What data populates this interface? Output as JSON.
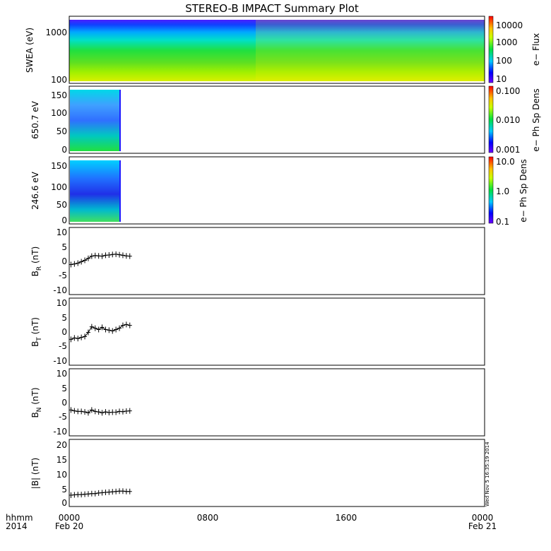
{
  "title": "STEREO-B IMPACT Summary Plot",
  "x_axis": {
    "ticks": [
      {
        "top": "0000",
        "bottom": "Feb 20"
      },
      {
        "top": "0800",
        "bottom": ""
      },
      {
        "top": "1600",
        "bottom": ""
      },
      {
        "top": "0000",
        "bottom": "Feb 21"
      }
    ],
    "corner_top": "hhmm",
    "corner_bottom": "2014",
    "range_hours": [
      0,
      24
    ]
  },
  "timestamp": "Wed Nov  5 16:35:19 2014",
  "panels": [
    {
      "id": "swea",
      "ylabel": "SWEA (eV)",
      "yticks": [
        "1000",
        "100"
      ],
      "colorbar": {
        "label": "e− Flux",
        "ticks": [
          "10000",
          "1000",
          "100",
          "10"
        ]
      }
    },
    {
      "id": "pad650",
      "ylabel": "650.7 eV",
      "yticks": [
        "150",
        "100",
        "50",
        "0"
      ],
      "colorbar": {
        "label": "e− Ph Sp Dens",
        "ticks": [
          "0.100",
          "0.010",
          "0.001"
        ]
      }
    },
    {
      "id": "pad246",
      "ylabel": "246.6 eV",
      "yticks": [
        "150",
        "100",
        "50",
        "0"
      ],
      "colorbar": {
        "label": "e− Ph Sp Dens",
        "ticks": [
          "10.0",
          "1.0",
          "0.1"
        ]
      }
    },
    {
      "id": "br",
      "ylabel": "B",
      "ysub": "R",
      "yunit": " (nT)",
      "yticks": [
        "10",
        "5",
        "0",
        "-5",
        "-10"
      ]
    },
    {
      "id": "bt",
      "ylabel": "B",
      "ysub": "T",
      "yunit": " (nT)",
      "yticks": [
        "10",
        "5",
        "0",
        "-5",
        "-10"
      ]
    },
    {
      "id": "bn",
      "ylabel": "B",
      "ysub": "N",
      "yunit": " (nT)",
      "yticks": [
        "10",
        "5",
        "0",
        "-5",
        "-10"
      ]
    },
    {
      "id": "bmag",
      "ylabel": "|B| (nT)",
      "yticks": [
        "20",
        "15",
        "10",
        "5",
        "0"
      ]
    }
  ],
  "chart_data": [
    {
      "type": "heatmap",
      "panel": "swea",
      "ylabel": "SWEA (eV)",
      "y_scale": "log",
      "ylim": [
        100,
        2000
      ],
      "colorbar_label": "e− Flux",
      "colorbar_scale": "log",
      "colorbar_range": [
        10,
        10000
      ],
      "x_hours": [
        0,
        24
      ]
    },
    {
      "type": "heatmap",
      "panel": "pad650",
      "ylabel": "650.7 eV",
      "ylim": [
        0,
        180
      ],
      "colorbar_label": "e− Ph Sp Dens",
      "colorbar_scale": "log",
      "colorbar_range": [
        0.001,
        0.1
      ],
      "data_x_hours": [
        0,
        3.5
      ]
    },
    {
      "type": "heatmap",
      "panel": "pad246",
      "ylabel": "246.6 eV",
      "ylim": [
        0,
        180
      ],
      "colorbar_label": "e− Ph Sp Dens",
      "colorbar_scale": "log",
      "colorbar_range": [
        0.1,
        10
      ],
      "data_x_hours": [
        0,
        3.5
      ]
    },
    {
      "type": "scatter",
      "panel": "br",
      "ylabel": "B_R (nT)",
      "ylim": [
        -11,
        11
      ],
      "x": [
        0.1,
        0.3,
        0.5,
        0.7,
        0.9,
        1.1,
        1.3,
        1.5,
        1.7,
        1.9,
        2.1,
        2.3,
        2.5,
        2.7,
        2.9,
        3.1,
        3.3,
        3.5
      ],
      "y": [
        -1.0,
        -0.8,
        -0.5,
        0.0,
        0.5,
        1.2,
        2.0,
        2.2,
        2.1,
        2.0,
        2.3,
        2.4,
        2.6,
        2.7,
        2.5,
        2.3,
        2.1,
        2.0
      ]
    },
    {
      "type": "scatter",
      "panel": "bt",
      "ylabel": "B_T (nT)",
      "ylim": [
        -11,
        11
      ],
      "x": [
        0.1,
        0.3,
        0.5,
        0.7,
        0.9,
        1.1,
        1.3,
        1.5,
        1.7,
        1.9,
        2.1,
        2.3,
        2.5,
        2.7,
        2.9,
        3.1,
        3.3,
        3.5
      ],
      "y": [
        -2.5,
        -2.0,
        -2.2,
        -1.8,
        -1.5,
        0.0,
        2.0,
        1.5,
        1.0,
        1.8,
        1.0,
        0.8,
        0.5,
        1.0,
        1.5,
        2.5,
        2.8,
        2.5
      ]
    },
    {
      "type": "scatter",
      "panel": "bn",
      "ylabel": "B_N (nT)",
      "ylim": [
        -11,
        11
      ],
      "x": [
        0.1,
        0.3,
        0.5,
        0.7,
        0.9,
        1.1,
        1.3,
        1.5,
        1.7,
        1.9,
        2.1,
        2.3,
        2.5,
        2.7,
        2.9,
        3.1,
        3.3,
        3.5
      ],
      "y": [
        -2.5,
        -2.8,
        -3.0,
        -3.0,
        -3.2,
        -3.5,
        -2.5,
        -3.0,
        -3.2,
        -3.5,
        -3.2,
        -3.4,
        -3.3,
        -3.3,
        -3.0,
        -3.1,
        -2.9,
        -2.8
      ]
    },
    {
      "type": "scatter",
      "panel": "bmag",
      "ylabel": "|B| (nT)",
      "ylim": [
        0,
        20
      ],
      "x": [
        0.1,
        0.3,
        0.5,
        0.7,
        0.9,
        1.1,
        1.3,
        1.5,
        1.7,
        1.9,
        2.1,
        2.3,
        2.5,
        2.7,
        2.9,
        3.1,
        3.3,
        3.5
      ],
      "y": [
        3.0,
        3.1,
        3.2,
        3.2,
        3.3,
        3.4,
        3.5,
        3.5,
        3.7,
        3.8,
        3.9,
        4.0,
        4.1,
        4.2,
        4.3,
        4.3,
        4.2,
        4.2
      ]
    }
  ]
}
